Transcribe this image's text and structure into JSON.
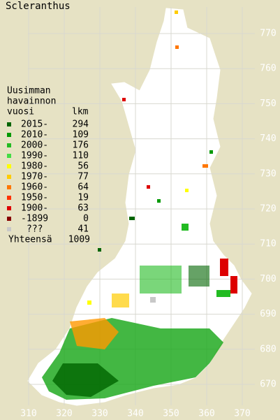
{
  "title": "Scleranthus",
  "legend": {
    "header": [
      "Uusimman",
      "havainnon",
      "vuosi"
    ],
    "count_header": "lkm",
    "items": [
      {
        "label": "2015-",
        "count": 294,
        "color": "#006400"
      },
      {
        "label": "2010-",
        "count": 109,
        "color": "#009900"
      },
      {
        "label": "2000-",
        "count": 176,
        "color": "#22bb22"
      },
      {
        "label": "1990-",
        "count": 110,
        "color": "#44dd44"
      },
      {
        "label": "1980-",
        "count": 56,
        "color": "#ffff00"
      },
      {
        "label": "1970-",
        "count": 77,
        "color": "#ffcc00"
      },
      {
        "label": "1960-",
        "count": 64,
        "color": "#ff7700"
      },
      {
        "label": "1950-",
        "count": 19,
        "color": "#ff3300"
      },
      {
        "label": "1900-",
        "count": 63,
        "color": "#dd0000"
      },
      {
        "label": "-1899",
        "count": 0,
        "color": "#880000"
      },
      {
        "label": "???",
        "count": 41,
        "color": "#c8c8c8"
      }
    ],
    "total_label": "Yhteensä",
    "total": 1009
  },
  "grid": {
    "xticks": [
      310,
      320,
      330,
      340,
      350,
      360,
      370
    ],
    "yticks": [
      670,
      680,
      690,
      700,
      710,
      720,
      730,
      740,
      750,
      760,
      770
    ]
  }
}
